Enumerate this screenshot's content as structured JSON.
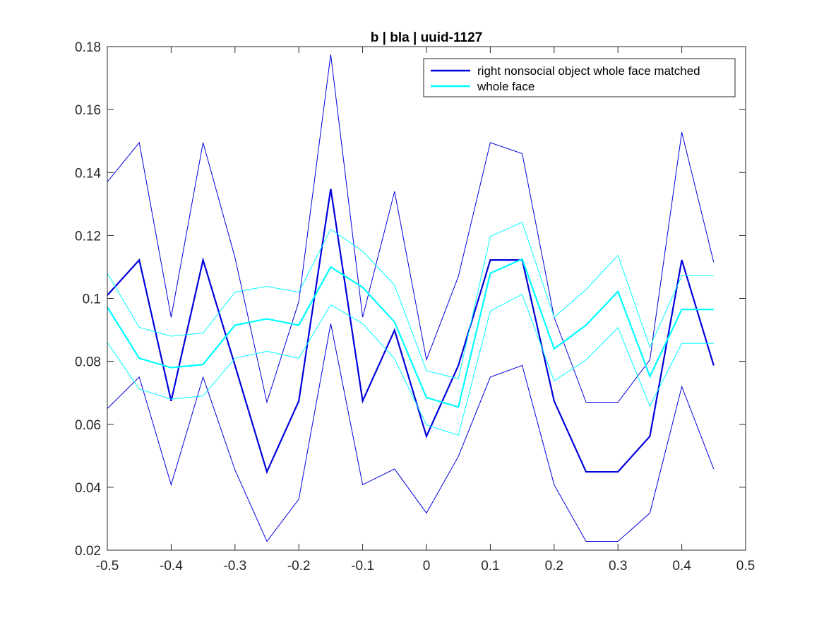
{
  "chart_data": {
    "type": "line",
    "title": "b | bla | uuid-1127",
    "xlabel": "",
    "ylabel": "",
    "xlim": [
      -0.5,
      0.5
    ],
    "ylim": [
      0.02,
      0.18
    ],
    "x_ticks": [
      -0.5,
      -0.4,
      -0.3,
      -0.2,
      -0.1,
      0,
      0.1,
      0.2,
      0.3,
      0.4,
      0.5
    ],
    "x_tick_labels": [
      "-0.5",
      "-0.4",
      "-0.3",
      "-0.2",
      "-0.1",
      "0",
      "0.1",
      "0.2",
      "0.3",
      "0.4",
      "0.5"
    ],
    "y_ticks": [
      0.02,
      0.04,
      0.06,
      0.08,
      0.1,
      0.12,
      0.14,
      0.16,
      0.18
    ],
    "y_tick_labels": [
      "0.02",
      "0.04",
      "0.06",
      "0.08",
      "0.1",
      "0.12",
      "0.14",
      "0.16",
      "0.18"
    ],
    "grid": false,
    "legend_position": "top-right",
    "x": [
      -0.5,
      -0.45,
      -0.4,
      -0.35,
      -0.3,
      -0.25,
      -0.2,
      -0.15,
      -0.1,
      -0.05,
      0,
      0.05,
      0.1,
      0.15,
      0.2,
      0.25,
      0.3,
      0.35,
      0.4,
      0.45
    ],
    "series": [
      {
        "name": "right nonsocial object whole face matched",
        "color": "#0000dd",
        "mean": [
          0.101,
          0.1122,
          0.0674,
          0.1122,
          0.0787,
          0.0449,
          0.0674,
          0.1348,
          0.0674,
          0.0899,
          0.0562,
          0.0787,
          0.1122,
          0.1122,
          0.0674,
          0.0449,
          0.0449,
          0.0562,
          0.1122,
          0.0787
        ],
        "upper": [
          0.137,
          0.1495,
          0.094,
          0.1495,
          0.113,
          0.067,
          0.099,
          0.1775,
          0.094,
          0.134,
          0.0805,
          0.107,
          0.1495,
          0.146,
          0.094,
          0.067,
          0.067,
          0.0805,
          0.1528,
          0.1115
        ],
        "lower": [
          0.065,
          0.075,
          0.0408,
          0.075,
          0.0455,
          0.0228,
          0.0362,
          0.092,
          0.0408,
          0.0458,
          0.0318,
          0.0498,
          0.075,
          0.0787,
          0.0408,
          0.0228,
          0.0228,
          0.0318,
          0.072,
          0.0458
        ]
      },
      {
        "name": "whole face",
        "color": "#00ffff",
        "mean": [
          0.0972,
          0.081,
          0.078,
          0.079,
          0.0915,
          0.0935,
          0.0915,
          0.11,
          0.1035,
          0.0925,
          0.0685,
          0.0655,
          0.108,
          0.1125,
          0.084,
          0.0915,
          0.1022,
          0.0752,
          0.0965,
          0.0965
        ],
        "upper": [
          0.108,
          0.0908,
          0.088,
          0.089,
          0.102,
          0.1038,
          0.102,
          0.122,
          0.115,
          0.1042,
          0.077,
          0.0745,
          0.1197,
          0.1242,
          0.094,
          0.1028,
          0.1137,
          0.0845,
          0.1072,
          0.1072
        ],
        "lower": [
          0.086,
          0.0712,
          0.068,
          0.069,
          0.081,
          0.0832,
          0.081,
          0.098,
          0.092,
          0.0808,
          0.0598,
          0.0565,
          0.096,
          0.1013,
          0.0738,
          0.0805,
          0.0907,
          0.0658,
          0.0857,
          0.0857
        ]
      }
    ]
  }
}
